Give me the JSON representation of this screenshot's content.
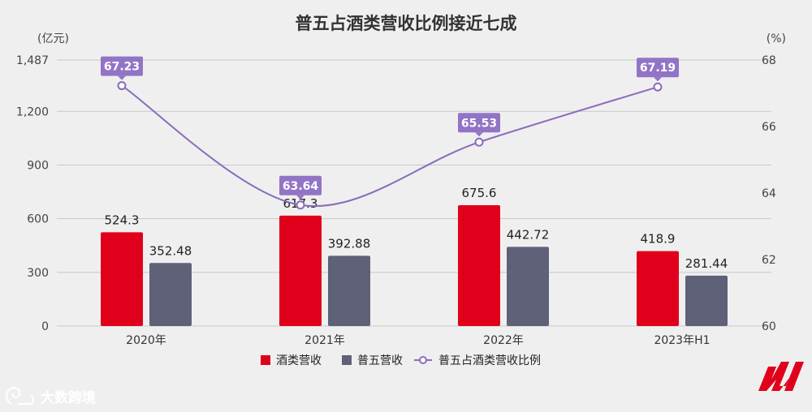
{
  "colors": {
    "bar1": "#e0001b",
    "bar2": "#5e6178",
    "line": "#8a6bbd",
    "label_box": "#9274c6"
  },
  "watermark": {
    "text": "大数跨境",
    "icon": "snail-logo-icon"
  },
  "brand_logo": {
    "icon": "brand-m-logo-icon"
  },
  "chart_data": {
    "type": "bar",
    "title": "普五占酒类营收比例接近七成",
    "left_unit": "(亿元)",
    "right_unit": "(%)",
    "categories": [
      "2020年",
      "2021年",
      "2022年",
      "2023年H1"
    ],
    "y_left": {
      "min": 0,
      "max": 1487,
      "ticks": [
        0,
        300,
        600,
        900,
        1200,
        1487
      ],
      "tick_labels": [
        "0",
        "300",
        "600",
        "900",
        "1,200",
        "1,487"
      ]
    },
    "y_right": {
      "min": 60,
      "max": 68,
      "ticks": [
        60,
        62,
        64,
        66,
        68
      ],
      "tick_labels": [
        "60",
        "62",
        "64",
        "66",
        "68"
      ]
    },
    "series": [
      {
        "name": "酒类营收",
        "type": "bar",
        "axis": "left",
        "values": [
          524.3,
          617.3,
          675.6,
          418.9
        ],
        "labels": [
          "524.3",
          "617.3",
          "675.6",
          "418.9"
        ]
      },
      {
        "name": "普五营收",
        "type": "bar",
        "axis": "left",
        "values": [
          352.48,
          392.88,
          442.72,
          281.44
        ],
        "labels": [
          "352.48",
          "392.88",
          "442.72",
          "281.44"
        ]
      },
      {
        "name": "普五占酒类营收比例",
        "type": "line",
        "axis": "right",
        "values": [
          67.23,
          63.64,
          65.53,
          67.19
        ],
        "labels": [
          "67.23",
          "63.64",
          "65.53",
          "67.19"
        ]
      }
    ],
    "legend_position": "bottom"
  }
}
